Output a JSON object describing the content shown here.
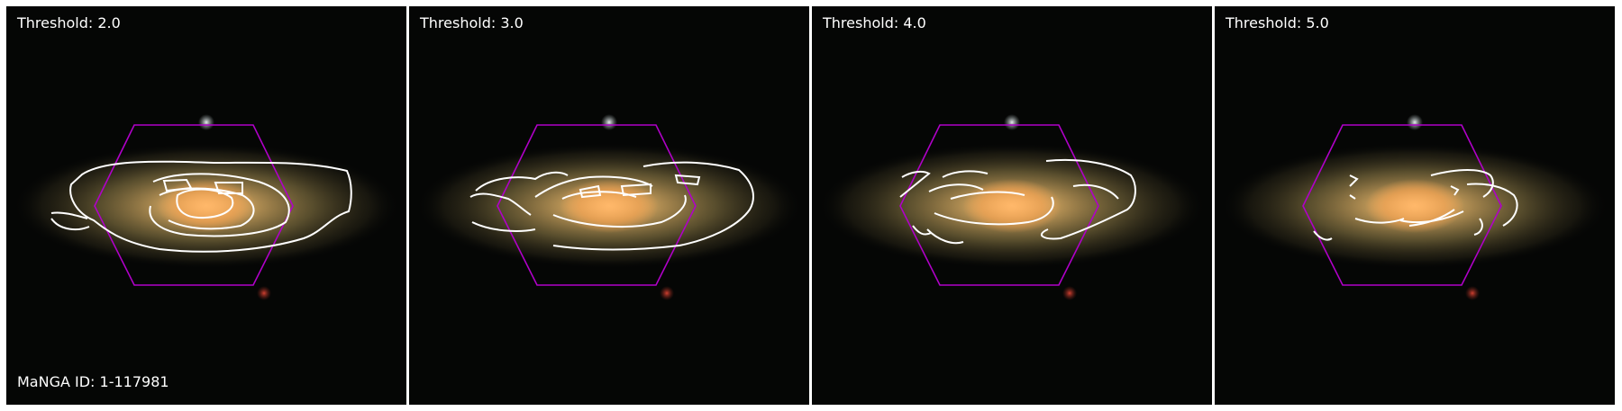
{
  "panels": [
    {
      "label": "Threshold: 2.0",
      "contour_level": 1
    },
    {
      "label": "Threshold: 3.0",
      "contour_level": 2
    },
    {
      "label": "Threshold: 4.0",
      "contour_level": 3
    },
    {
      "label": "Threshold: 5.0",
      "contour_level": 4
    }
  ],
  "manga_id_label": "MaNGA ID: 1-117981",
  "colors": {
    "sky": "#050605",
    "hexagon": "#b000c8",
    "contour": "#ffffff",
    "galaxy_core": "#ffc27a",
    "galaxy_disk": "#8a7b4d"
  }
}
